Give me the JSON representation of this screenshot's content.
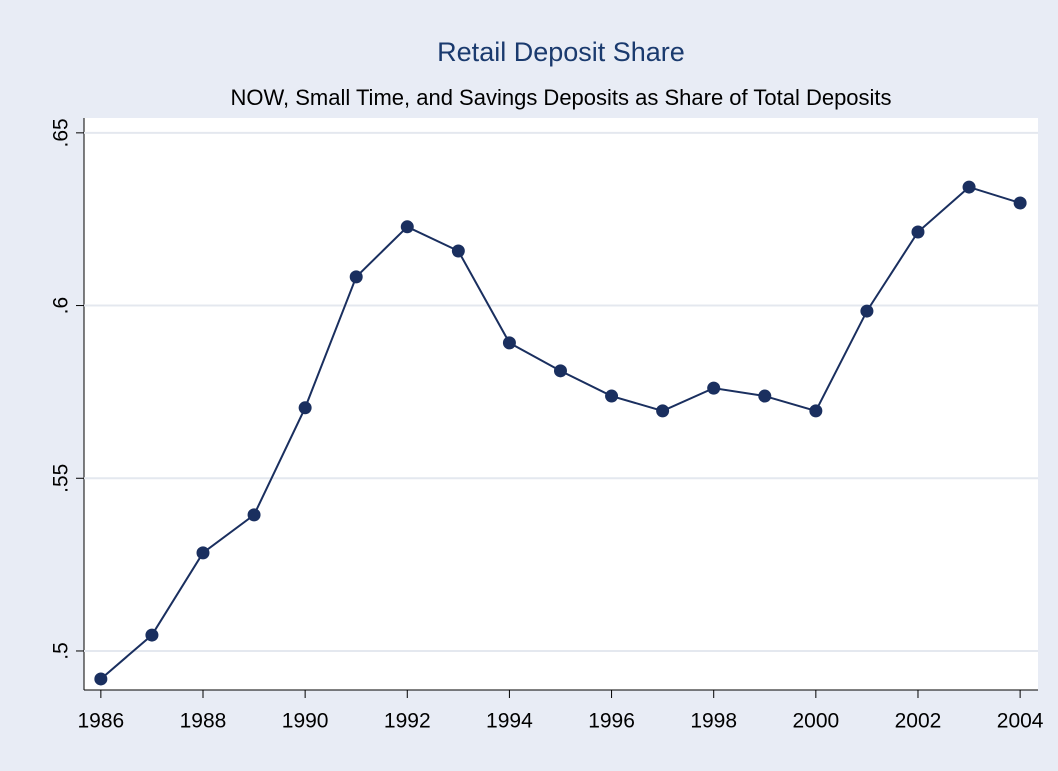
{
  "chart_data": {
    "type": "line",
    "title": "Retail Deposit Share",
    "subtitle": "NOW, Small Time, and Savings Deposits as Share of Total Deposits",
    "x": [
      1986,
      1987,
      1988,
      1989,
      1990,
      1991,
      1992,
      1993,
      1994,
      1995,
      1996,
      1997,
      1998,
      1999,
      2000,
      2001,
      2002,
      2003,
      2004
    ],
    "series": [
      {
        "color": "#1a2f5f",
        "values": [
          0.4919,
          0.5046,
          0.5284,
          0.5394,
          0.5704,
          0.6083,
          0.6228,
          0.6158,
          0.5892,
          0.5811,
          0.5738,
          0.5695,
          0.5761,
          0.5738,
          0.5695,
          0.5984,
          0.6213,
          0.6343,
          0.6297
        ]
      }
    ],
    "xlim": [
      1985.67,
      2004.35
    ],
    "xticks": [
      1986,
      1988,
      1990,
      1992,
      1994,
      1996,
      1998,
      2000,
      2002,
      2004
    ],
    "ylim": [
      0.4887,
      0.6543
    ],
    "yticks": [
      {
        "value": 0.5,
        "label": ".5"
      },
      {
        "value": 0.55,
        "label": ".55"
      },
      {
        "value": 0.6,
        "label": ".6"
      },
      {
        "value": 0.65,
        "label": ".65"
      }
    ],
    "grid": true
  }
}
